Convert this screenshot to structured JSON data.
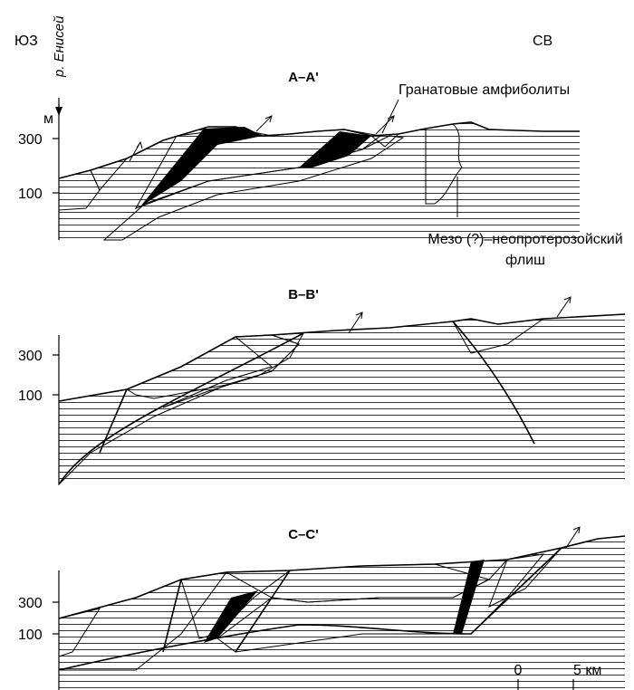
{
  "header": {
    "left": "ЮЗ",
    "right": "СВ",
    "river": "р. Енисей",
    "unit": "м"
  },
  "sections": [
    {
      "title": "A–A'",
      "axis_labels": [
        "300",
        "100"
      ]
    },
    {
      "title": "B–B'",
      "axis_labels": [
        "300",
        "100"
      ]
    },
    {
      "title": "C–C'",
      "axis_labels": [
        "300",
        "100"
      ]
    }
  ],
  "labels": {
    "garnet": "Гранатовые амфиболиты",
    "flysch": [
      "Мезо (?)–неопротерозойский",
      "флиш"
    ]
  },
  "scale": {
    "zero": "0",
    "five": "5 км"
  }
}
